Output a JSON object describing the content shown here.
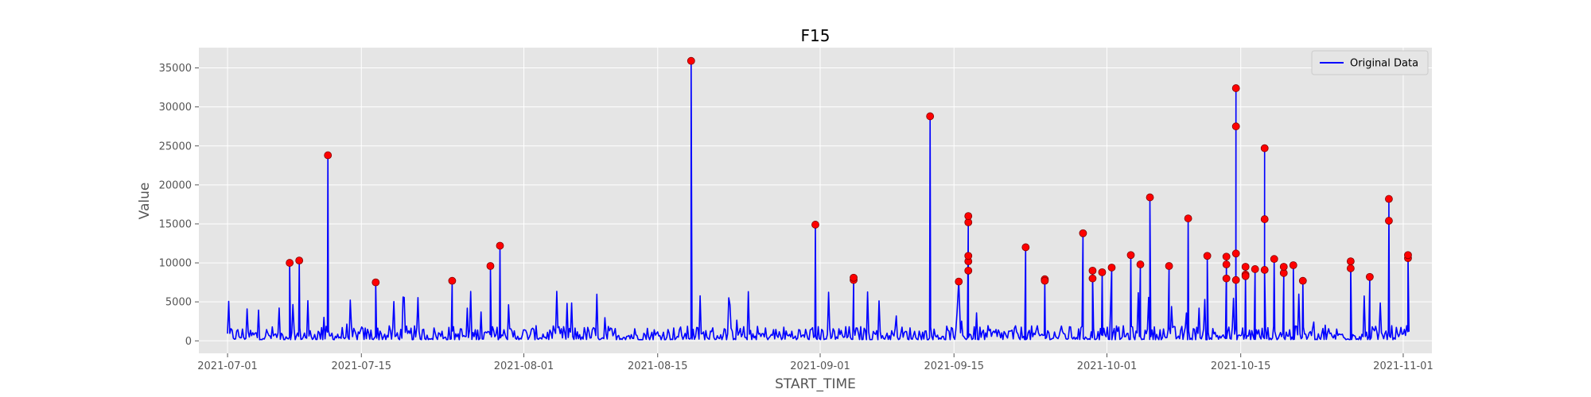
{
  "chart_data": {
    "type": "line",
    "title": "F15",
    "xlabel": "START_TIME",
    "ylabel": "Value",
    "x_ticks": [
      "2021-07-01",
      "2021-07-15",
      "2021-08-01",
      "2021-08-15",
      "2021-09-01",
      "2021-09-15",
      "2021-10-01",
      "2021-10-15",
      "2021-11-01"
    ],
    "y_ticks": [
      0,
      5000,
      10000,
      15000,
      20000,
      25000,
      30000,
      35000
    ],
    "xlim": [
      "2021-06-28",
      "2021-11-04"
    ],
    "ylim": [
      -1600,
      37600
    ],
    "grid": true,
    "legend": {
      "position": "top-right",
      "entries": [
        "Original Data"
      ]
    },
    "colors": {
      "series": "#0000ff",
      "peaks": "#ff0000",
      "background": "#e5e5e5",
      "grid": "#ffffff"
    },
    "series": [
      {
        "name": "Original Data",
        "points": [
          [
            "2021-07-07",
            10000
          ],
          [
            "2021-07-08",
            10300
          ],
          [
            "2021-07-11",
            23800
          ],
          [
            "2021-07-16",
            7500
          ],
          [
            "2021-07-24",
            7700
          ],
          [
            "2021-07-28",
            9600
          ],
          [
            "2021-07-29",
            12200
          ],
          [
            "2021-08-18",
            35900
          ],
          [
            "2021-08-31",
            14900
          ],
          [
            "2021-09-04",
            7800
          ],
          [
            "2021-09-04",
            8100
          ],
          [
            "2021-09-12",
            28800
          ],
          [
            "2021-09-15",
            7600
          ],
          [
            "2021-09-16",
            15200
          ],
          [
            "2021-09-16",
            16000
          ],
          [
            "2021-09-16",
            10200
          ],
          [
            "2021-09-16",
            9000
          ],
          [
            "2021-09-16",
            10900
          ],
          [
            "2021-09-22",
            12000
          ],
          [
            "2021-09-24",
            7900
          ],
          [
            "2021-09-24",
            7700
          ],
          [
            "2021-09-28",
            13800
          ],
          [
            "2021-09-29",
            8000
          ],
          [
            "2021-09-29",
            9000
          ],
          [
            "2021-09-30",
            8800
          ],
          [
            "2021-10-01",
            9400
          ],
          [
            "2021-10-03",
            11000
          ],
          [
            "2021-10-04",
            9800
          ],
          [
            "2021-10-05",
            18400
          ],
          [
            "2021-10-07",
            9600
          ],
          [
            "2021-10-09",
            15700
          ],
          [
            "2021-10-11",
            10900
          ],
          [
            "2021-10-13",
            9800
          ],
          [
            "2021-10-13",
            8000
          ],
          [
            "2021-10-13",
            10800
          ],
          [
            "2021-10-14",
            32400
          ],
          [
            "2021-10-14",
            27500
          ],
          [
            "2021-10-14",
            11200
          ],
          [
            "2021-10-14",
            7800
          ],
          [
            "2021-10-15",
            8500
          ],
          [
            "2021-10-15",
            9500
          ],
          [
            "2021-10-15",
            8300
          ],
          [
            "2021-10-16",
            9200
          ],
          [
            "2021-10-17",
            24700
          ],
          [
            "2021-10-17",
            15600
          ],
          [
            "2021-10-17",
            9100
          ],
          [
            "2021-10-18",
            10500
          ],
          [
            "2021-10-19",
            8700
          ],
          [
            "2021-10-19",
            9500
          ],
          [
            "2021-10-20",
            9700
          ],
          [
            "2021-10-21",
            7700
          ],
          [
            "2021-10-26",
            9300
          ],
          [
            "2021-10-26",
            10200
          ],
          [
            "2021-10-28",
            8200
          ],
          [
            "2021-10-30",
            15400
          ],
          [
            "2021-10-30",
            18200
          ],
          [
            "2021-11-01",
            10600
          ],
          [
            "2021-11-01",
            11000
          ]
        ]
      }
    ],
    "peaks": [
      [
        "2021-07-07",
        10000
      ],
      [
        "2021-07-08",
        10300
      ],
      [
        "2021-07-11",
        23800
      ],
      [
        "2021-07-16",
        7500
      ],
      [
        "2021-07-24",
        7700
      ],
      [
        "2021-07-28",
        9600
      ],
      [
        "2021-07-29",
        12200
      ],
      [
        "2021-08-18",
        35900
      ],
      [
        "2021-08-31",
        14900
      ],
      [
        "2021-09-04",
        7800
      ],
      [
        "2021-09-04",
        8100
      ],
      [
        "2021-09-12",
        28800
      ],
      [
        "2021-09-15",
        7600
      ],
      [
        "2021-09-16",
        15200
      ],
      [
        "2021-09-16",
        16000
      ],
      [
        "2021-09-16",
        10200
      ],
      [
        "2021-09-16",
        9000
      ],
      [
        "2021-09-16",
        10900
      ],
      [
        "2021-09-22",
        12000
      ],
      [
        "2021-09-24",
        7900
      ],
      [
        "2021-09-24",
        7700
      ],
      [
        "2021-09-28",
        13800
      ],
      [
        "2021-09-29",
        8000
      ],
      [
        "2021-09-29",
        9000
      ],
      [
        "2021-09-30",
        8800
      ],
      [
        "2021-10-01",
        9400
      ],
      [
        "2021-10-03",
        11000
      ],
      [
        "2021-10-04",
        9800
      ],
      [
        "2021-10-05",
        18400
      ],
      [
        "2021-10-07",
        9600
      ],
      [
        "2021-10-09",
        15700
      ],
      [
        "2021-10-11",
        10900
      ],
      [
        "2021-10-13",
        9800
      ],
      [
        "2021-10-13",
        8000
      ],
      [
        "2021-10-13",
        10800
      ],
      [
        "2021-10-14",
        32400
      ],
      [
        "2021-10-14",
        27500
      ],
      [
        "2021-10-14",
        11200
      ],
      [
        "2021-10-14",
        7800
      ],
      [
        "2021-10-15",
        8500
      ],
      [
        "2021-10-15",
        9500
      ],
      [
        "2021-10-15",
        8300
      ],
      [
        "2021-10-16",
        9200
      ],
      [
        "2021-10-17",
        24700
      ],
      [
        "2021-10-17",
        15600
      ],
      [
        "2021-10-17",
        9100
      ],
      [
        "2021-10-18",
        10500
      ],
      [
        "2021-10-19",
        8700
      ],
      [
        "2021-10-19",
        9500
      ],
      [
        "2021-10-20",
        9700
      ],
      [
        "2021-10-21",
        7700
      ],
      [
        "2021-10-26",
        9300
      ],
      [
        "2021-10-26",
        10200
      ],
      [
        "2021-10-28",
        8200
      ],
      [
        "2021-10-30",
        15400
      ],
      [
        "2021-10-30",
        18200
      ],
      [
        "2021-11-01",
        10600
      ],
      [
        "2021-11-01",
        11000
      ]
    ]
  }
}
